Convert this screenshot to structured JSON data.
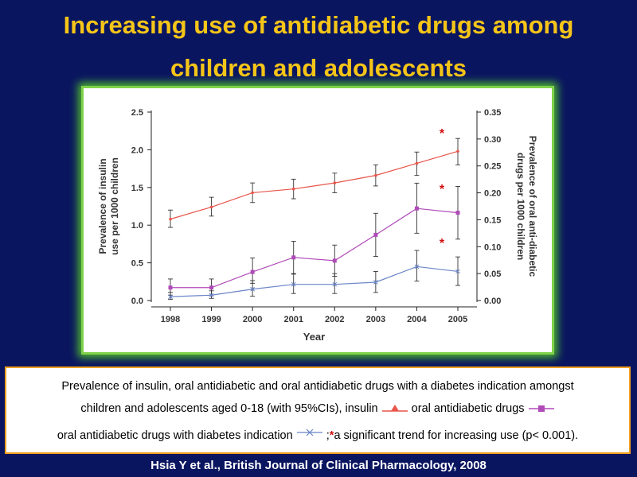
{
  "slide": {
    "title_line1": "Increasing use of antidiabetic drugs among",
    "title_line2": "children and adolescents",
    "source": "Hsia Y et al., British Journal of Clinical Pharmacology, 2008"
  },
  "caption": {
    "line1": "Prevalence of insulin, oral antidiabetic and oral antidiabetic drugs with a diabetes indication amongst",
    "line2_a": "children and adolescents aged 0-18 (with 95%CIs), insulin",
    "line2_b": "oral antidiabetic drugs",
    "line3_a": "oral antidiabetic drugs with diabetes indication",
    "line3_b": ";",
    "line3_star": "*",
    "line3_c": "a significant trend for increasing use (p< 0.001)."
  },
  "colors": {
    "insulin": "#e8554a",
    "oral": "#b04ab8",
    "oral_indication": "#6a85c8",
    "star": "#d01010",
    "title": "#f5c518"
  },
  "chart_data": {
    "type": "line",
    "x": [
      1998,
      1999,
      2000,
      2001,
      2002,
      2003,
      2004,
      2005
    ],
    "xlabel": "Year",
    "ylabel_left": "Prevalence of insulin use per 1000 children",
    "ylabel_right": "Prevalence of oral anti-diabetic drugs per 1000 children",
    "ylim_left": [
      0,
      2.5
    ],
    "ylim_right": [
      0,
      0.35
    ],
    "yticks_left": [
      "0.0",
      "0.5",
      "1.0",
      "1.5",
      "2.0",
      "2.5"
    ],
    "yticks_right": [
      "0.00",
      "0.05",
      "0.10",
      "0.15",
      "0.20",
      "0.25",
      "0.30",
      "0.35"
    ],
    "grid": false,
    "significance_marker": "*",
    "series": [
      {
        "key": "insulin",
        "axis": "left",
        "marker": "triangle",
        "values": [
          1.08,
          1.24,
          1.43,
          1.48,
          1.56,
          1.66,
          1.82,
          1.98
        ],
        "ci_low": [
          0.97,
          1.12,
          1.3,
          1.35,
          1.43,
          1.52,
          1.66,
          1.8
        ],
        "ci_high": [
          1.2,
          1.37,
          1.56,
          1.61,
          1.69,
          1.8,
          1.97,
          2.15
        ],
        "significant": true
      },
      {
        "key": "oral",
        "axis": "right",
        "marker": "square",
        "values": [
          0.024,
          0.024,
          0.053,
          0.08,
          0.074,
          0.122,
          0.171,
          0.163
        ],
        "ci_low": [
          0.01,
          0.01,
          0.032,
          0.049,
          0.045,
          0.082,
          0.125,
          0.114
        ],
        "ci_high": [
          0.04,
          0.04,
          0.079,
          0.11,
          0.103,
          0.162,
          0.218,
          0.212
        ],
        "significant": true
      },
      {
        "key": "oral_indication",
        "axis": "right",
        "marker": "x",
        "values": [
          0.007,
          0.01,
          0.021,
          0.03,
          0.03,
          0.034,
          0.063,
          0.054
        ],
        "ci_low": [
          0.002,
          0.004,
          0.008,
          0.013,
          0.013,
          0.015,
          0.036,
          0.028
        ],
        "ci_high": [
          0.015,
          0.018,
          0.037,
          0.05,
          0.05,
          0.054,
          0.093,
          0.081
        ],
        "significant": true
      }
    ]
  }
}
